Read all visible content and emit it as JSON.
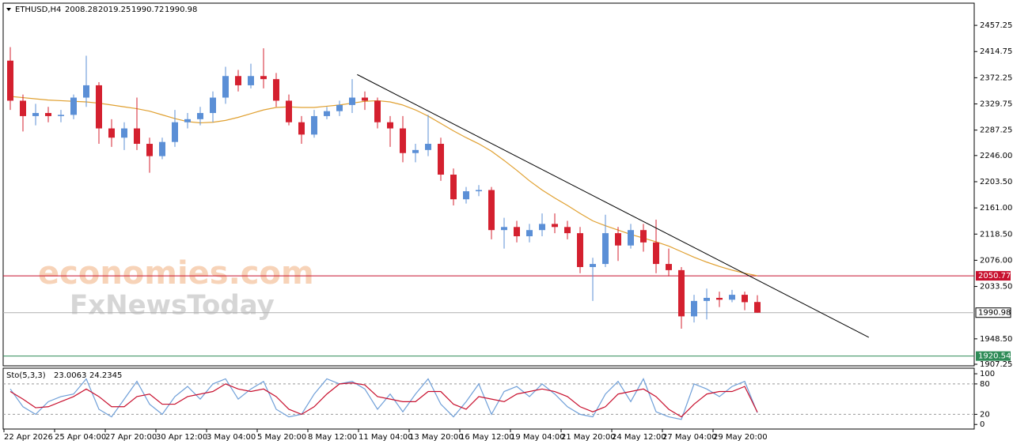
{
  "chart_data": {
    "type": "candlestick",
    "title": "ETHUSD,H4",
    "categories": [
      "22 Apr 2026",
      null,
      null,
      null,
      "25 Apr 04:00",
      null,
      null,
      null,
      "27 Apr 20:00",
      null,
      null,
      null,
      "30 Apr 12:00",
      null,
      null,
      null,
      "3 May 04:00",
      null,
      null,
      null,
      "5 May 20:00",
      null,
      null,
      null,
      "8 May 12:00",
      null,
      null,
      null,
      "11 May 04:00",
      null,
      null,
      null,
      "13 May 20:00",
      null,
      null,
      null,
      "16 May 12:00",
      null,
      null,
      null,
      "19 May 04:00",
      null,
      null,
      null,
      "21 May 20:00",
      null,
      null,
      null,
      "24 May 12:00",
      null,
      null,
      null,
      "27 May 04:00",
      null,
      null,
      null,
      "29 May 20:00",
      null,
      null,
      null
    ],
    "open": [
      2400,
      2335,
      2310,
      2315,
      2310,
      2312,
      2340,
      2360,
      2290,
      2275,
      2290,
      2265,
      2245,
      2268,
      2300,
      2305,
      2315,
      2340,
      2375,
      2360,
      2375,
      2370,
      2335,
      2300,
      2280,
      2310,
      2318,
      2328,
      2340,
      2335,
      2300,
      2290,
      2250,
      2255,
      2265,
      2215,
      2175,
      2188,
      2190,
      2125,
      2130,
      2115,
      2125,
      2135,
      2130,
      2120,
      2065,
      2070,
      2120,
      2100,
      2125,
      2105,
      2070,
      2060,
      1985,
      2010,
      2015,
      2012,
      2020,
      2008.28
    ],
    "high": [
      2422,
      2345,
      2330,
      2325,
      2320,
      2345,
      2408,
      2365,
      2305,
      2300,
      2340,
      2275,
      2275,
      2320,
      2315,
      2325,
      2350,
      2390,
      2385,
      2395,
      2420,
      2380,
      2345,
      2310,
      2320,
      2325,
      2335,
      2370,
      2350,
      2340,
      2310,
      2310,
      2265,
      2312,
      2275,
      2225,
      2195,
      2198,
      2195,
      2145,
      2140,
      2135,
      2152,
      2152,
      2140,
      2130,
      2080,
      2150,
      2130,
      2135,
      2135,
      2142,
      2095,
      2065,
      2020,
      2030,
      2025,
      2028,
      2025,
      2019.25
    ],
    "low": [
      2320,
      2285,
      2295,
      2300,
      2300,
      2305,
      2325,
      2265,
      2260,
      2255,
      2255,
      2218,
      2240,
      2260,
      2290,
      2295,
      2300,
      2330,
      2350,
      2355,
      2355,
      2325,
      2295,
      2265,
      2275,
      2305,
      2310,
      2315,
      2320,
      2290,
      2260,
      2235,
      2235,
      2245,
      2205,
      2165,
      2168,
      2180,
      2110,
      2095,
      2105,
      2105,
      2115,
      2120,
      2110,
      2055,
      2010,
      2065,
      2075,
      2095,
      2090,
      2055,
      2050,
      1965,
      1975,
      1980,
      2000,
      2008,
      1995,
      1990.72
    ],
    "close": [
      2335,
      2310,
      2315,
      2310,
      2312,
      2340,
      2360,
      2290,
      2275,
      2290,
      2265,
      2245,
      2268,
      2300,
      2305,
      2315,
      2340,
      2375,
      2360,
      2375,
      2370,
      2335,
      2300,
      2280,
      2310,
      2318,
      2328,
      2340,
      2335,
      2300,
      2290,
      2250,
      2255,
      2265,
      2215,
      2175,
      2188,
      2190,
      2125,
      2130,
      2115,
      2125,
      2135,
      2130,
      2120,
      2065,
      2070,
      2120,
      2100,
      2125,
      2105,
      2070,
      2060,
      1985,
      2010,
      2015,
      2012,
      2020,
      2008,
      1990.98
    ],
    "up_color": "#5b8fd6",
    "down_color": "#d4202f",
    "ma": {
      "color": "#e0a030",
      "values": [
        2342,
        2340,
        2338,
        2336,
        2335,
        2334,
        2333,
        2331,
        2328,
        2325,
        2322,
        2318,
        2312,
        2306,
        2301,
        2299,
        2300,
        2303,
        2308,
        2314,
        2320,
        2324,
        2325,
        2324,
        2324,
        2326,
        2328,
        2331,
        2334,
        2335,
        2333,
        2328,
        2320,
        2310,
        2298,
        2286,
        2275,
        2265,
        2253,
        2238,
        2222,
        2205,
        2190,
        2177,
        2165,
        2152,
        2140,
        2132,
        2125,
        2118,
        2112,
        2106,
        2099,
        2090,
        2081,
        2073,
        2066,
        2060,
        2055,
        2051
      ]
    },
    "ylim": [
      1904.7,
      2492
    ],
    "yticks": [
      2457.25,
      2414.75,
      2372.25,
      2329.75,
      2287.25,
      {
        "value": 2246,
        "label": "2246.00"
      },
      {
        "value": 2203.5,
        "label": "2203.50"
      },
      {
        "value": 2161,
        "label": "2161.00"
      },
      {
        "value": 2118.5,
        "label": "2118.50"
      },
      {
        "value": 2076,
        "label": "2076.00"
      },
      {
        "value": 2033.5,
        "label": "2033.50"
      },
      {
        "value": 1948.5,
        "label": "1948.50"
      },
      1907.25
    ],
    "hlines": [
      {
        "value": 2050.77,
        "color": "#c8102e"
      },
      {
        "value": 1920.54,
        "color": "#2e8b57"
      }
    ],
    "trendline": {
      "x": [
        27.4,
        67.8
      ],
      "y": [
        2377.4,
        1951
      ],
      "color": "#000000"
    },
    "watermark": [
      "economies.com",
      "FxNewsToday"
    ],
    "oscillator": {
      "label": "Sto(5,3,3)",
      "k_color": "#6f9fd8",
      "d_color": "#c8102e",
      "k": [
        70,
        35,
        20,
        45,
        55,
        60,
        90,
        30,
        15,
        50,
        85,
        40,
        20,
        55,
        75,
        50,
        80,
        90,
        50,
        70,
        85,
        30,
        15,
        20,
        60,
        90,
        80,
        85,
        70,
        30,
        60,
        25,
        60,
        90,
        40,
        15,
        45,
        80,
        20,
        65,
        75,
        55,
        80,
        60,
        35,
        20,
        15,
        60,
        85,
        45,
        90,
        25,
        15,
        10,
        80,
        70,
        55,
        75,
        85,
        23.0063
      ],
      "d": [
        65,
        50,
        33,
        35,
        45,
        55,
        70,
        55,
        35,
        35,
        55,
        60,
        40,
        40,
        55,
        60,
        65,
        80,
        70,
        65,
        70,
        55,
        30,
        20,
        35,
        60,
        80,
        82,
        78,
        55,
        50,
        45,
        45,
        65,
        65,
        40,
        30,
        55,
        50,
        45,
        60,
        65,
        70,
        65,
        55,
        35,
        25,
        35,
        60,
        65,
        70,
        55,
        30,
        15,
        40,
        60,
        65,
        65,
        75,
        24.2345
      ],
      "ylim": [
        -9,
        111
      ],
      "yticks": [
        100,
        80,
        20,
        0
      ],
      "levels": [
        80,
        20
      ]
    }
  }
}
